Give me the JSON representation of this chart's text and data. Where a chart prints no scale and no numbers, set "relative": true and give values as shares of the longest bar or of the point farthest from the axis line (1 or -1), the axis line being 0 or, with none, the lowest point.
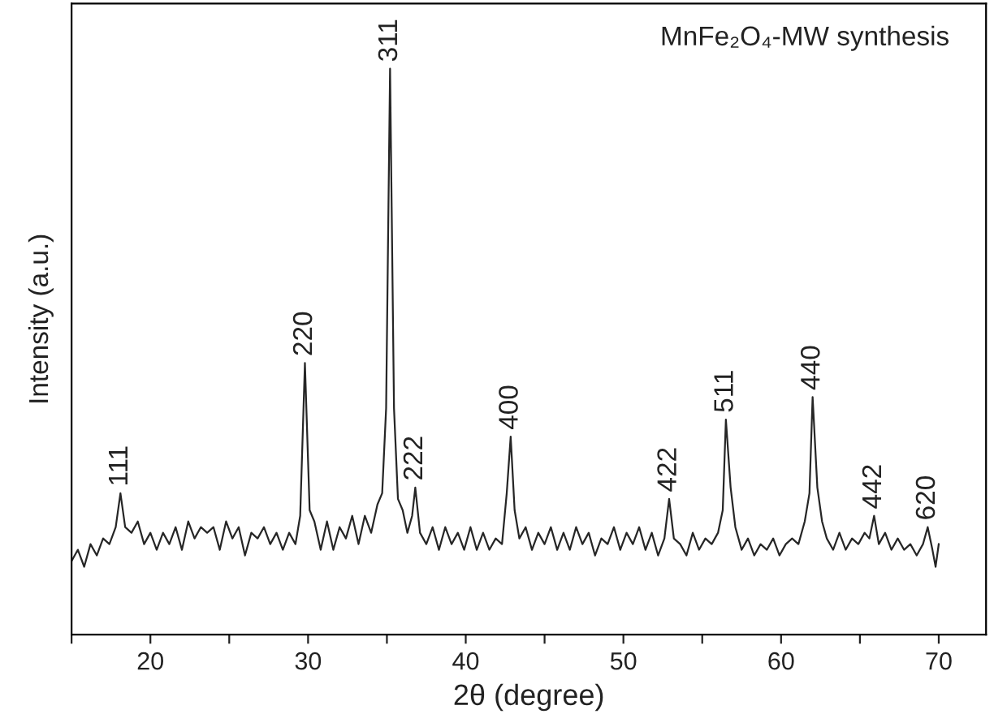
{
  "chart_data": {
    "type": "line",
    "relative": true,
    "xlabel": "2θ (degree)",
    "ylabel": "Intensity (a.u.)",
    "xlim": [
      15,
      73
    ],
    "xticks": [
      {
        "value": 15,
        "label": null
      },
      20,
      {
        "value": 25,
        "label": null
      },
      30,
      {
        "value": 35,
        "label": null
      },
      40,
      {
        "value": 45,
        "label": null
      },
      50,
      {
        "value": 55,
        "label": null
      },
      60,
      {
        "value": 65,
        "label": null
      },
      70
    ],
    "grid": false,
    "legend": false,
    "marker": "none",
    "line_style": "solid",
    "series": [
      {
        "color": "#262626",
        "x": [
          15.0,
          15.4,
          15.8,
          16.2,
          16.6,
          17.0,
          17.4,
          17.8,
          18.1,
          18.4,
          18.8,
          19.2,
          19.6,
          20.0,
          20.4,
          20.8,
          21.2,
          21.6,
          22.0,
          22.4,
          22.8,
          23.2,
          23.6,
          24.0,
          24.4,
          24.8,
          25.2,
          25.6,
          26.0,
          26.4,
          26.8,
          27.2,
          27.6,
          28.0,
          28.4,
          28.8,
          29.2,
          29.5,
          29.8,
          30.1,
          30.4,
          30.8,
          31.2,
          31.6,
          32.0,
          32.4,
          32.8,
          33.2,
          33.6,
          34.0,
          34.4,
          34.7,
          34.95,
          35.2,
          35.45,
          35.7,
          36.0,
          36.3,
          36.6,
          36.8,
          37.1,
          37.5,
          37.9,
          38.3,
          38.7,
          39.1,
          39.5,
          39.9,
          40.3,
          40.7,
          41.1,
          41.5,
          41.9,
          42.3,
          42.6,
          42.85,
          43.1,
          43.4,
          43.8,
          44.2,
          44.6,
          45.0,
          45.4,
          45.8,
          46.2,
          46.6,
          47.0,
          47.4,
          47.8,
          48.2,
          48.6,
          49.0,
          49.4,
          49.8,
          50.2,
          50.6,
          51.0,
          51.4,
          51.8,
          52.2,
          52.6,
          52.9,
          53.2,
          53.6,
          54.0,
          54.4,
          54.8,
          55.2,
          55.6,
          56.0,
          56.3,
          56.5,
          56.8,
          57.1,
          57.5,
          57.9,
          58.3,
          58.7,
          59.1,
          59.5,
          59.9,
          60.3,
          60.7,
          61.1,
          61.5,
          61.8,
          62.0,
          62.3,
          62.6,
          62.9,
          63.3,
          63.7,
          64.1,
          64.5,
          64.9,
          65.3,
          65.6,
          65.9,
          66.2,
          66.6,
          67.0,
          67.4,
          67.8,
          68.2,
          68.6,
          69.0,
          69.3,
          69.6,
          69.8,
          70.0
        ],
        "values": [
          0.13,
          0.15,
          0.12,
          0.16,
          0.14,
          0.17,
          0.16,
          0.19,
          0.25,
          0.19,
          0.18,
          0.2,
          0.16,
          0.18,
          0.15,
          0.18,
          0.16,
          0.19,
          0.15,
          0.2,
          0.17,
          0.19,
          0.18,
          0.19,
          0.15,
          0.2,
          0.17,
          0.19,
          0.14,
          0.18,
          0.17,
          0.19,
          0.16,
          0.18,
          0.15,
          0.18,
          0.16,
          0.21,
          0.48,
          0.22,
          0.2,
          0.15,
          0.2,
          0.15,
          0.19,
          0.17,
          0.21,
          0.16,
          0.21,
          0.18,
          0.23,
          0.25,
          0.4,
          1.0,
          0.4,
          0.24,
          0.22,
          0.18,
          0.21,
          0.26,
          0.18,
          0.16,
          0.19,
          0.15,
          0.19,
          0.16,
          0.18,
          0.15,
          0.19,
          0.15,
          0.18,
          0.15,
          0.17,
          0.16,
          0.25,
          0.35,
          0.22,
          0.17,
          0.19,
          0.15,
          0.18,
          0.16,
          0.19,
          0.15,
          0.18,
          0.15,
          0.19,
          0.16,
          0.18,
          0.14,
          0.17,
          0.16,
          0.19,
          0.15,
          0.18,
          0.16,
          0.19,
          0.15,
          0.18,
          0.14,
          0.17,
          0.24,
          0.17,
          0.16,
          0.14,
          0.18,
          0.15,
          0.17,
          0.16,
          0.18,
          0.22,
          0.38,
          0.26,
          0.19,
          0.15,
          0.17,
          0.14,
          0.16,
          0.15,
          0.17,
          0.14,
          0.16,
          0.17,
          0.16,
          0.2,
          0.25,
          0.42,
          0.26,
          0.2,
          0.17,
          0.15,
          0.18,
          0.15,
          0.17,
          0.16,
          0.18,
          0.17,
          0.21,
          0.16,
          0.18,
          0.15,
          0.17,
          0.15,
          0.16,
          0.14,
          0.16,
          0.19,
          0.15,
          0.12,
          0.16
        ]
      }
    ],
    "annotations": [
      "MnFe₂O₄-MW synthesis",
      {
        "text": "111",
        "x": 18.1,
        "y": 0.25
      },
      {
        "text": "220",
        "x": 29.8,
        "y": 0.48
      },
      {
        "text": "311",
        "x": 35.2,
        "y": 1.0
      },
      {
        "text": "222",
        "x": 36.8,
        "y": 0.26
      },
      {
        "text": "400",
        "x": 42.85,
        "y": 0.35
      },
      {
        "text": "422",
        "x": 52.9,
        "y": 0.24
      },
      {
        "text": "511",
        "x": 56.5,
        "y": 0.38
      },
      {
        "text": "440",
        "x": 62.0,
        "y": 0.42
      },
      {
        "text": "442",
        "x": 65.9,
        "y": 0.21
      },
      {
        "text": "620",
        "x": 69.3,
        "y": 0.19
      }
    ]
  }
}
